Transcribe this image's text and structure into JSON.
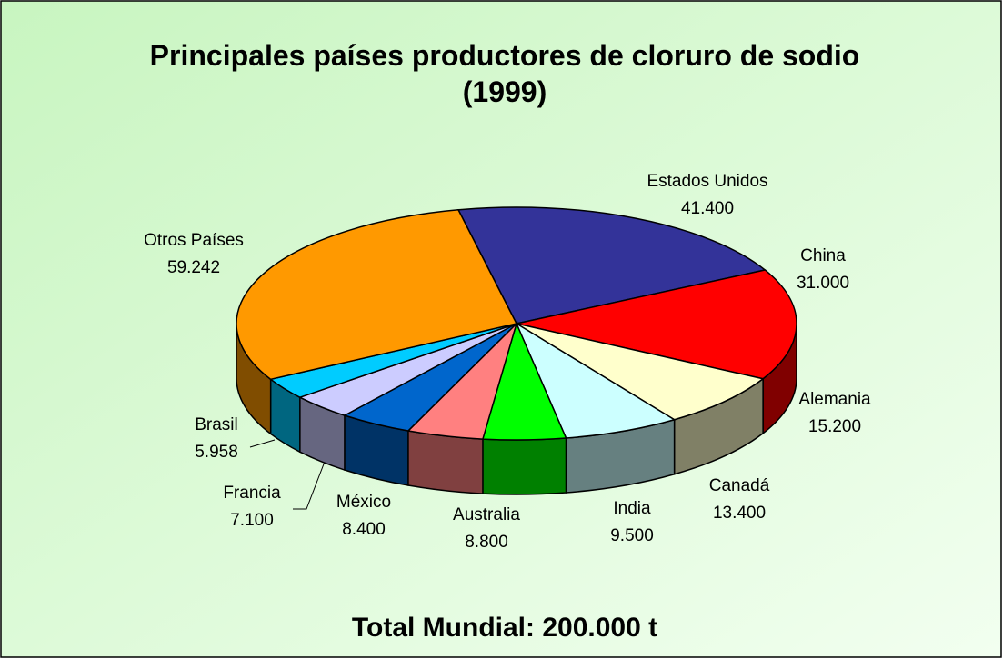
{
  "chart_data": {
    "type": "pie3d",
    "title": "Principales países productores de cloruro de sodio (1999)",
    "footer": "Total Mundial: 200.000 t",
    "categories": [
      "Estados Unidos",
      "China",
      "Alemania",
      "Canadá",
      "India",
      "Australia",
      "México",
      "Francia",
      "Brasil",
      "Otros Países"
    ],
    "values": [
      41400,
      31000,
      15200,
      13400,
      9500,
      8800,
      8400,
      7100,
      5958,
      59242
    ],
    "value_labels": [
      "41.400",
      "31.000",
      "15.200",
      "13.400",
      "9.500",
      "8.800",
      "8.400",
      "7.100",
      "5.958",
      "59.242"
    ],
    "colors": [
      "#333399",
      "#ff0000",
      "#ffffcc",
      "#ccffff",
      "#00ff00",
      "#ff8080",
      "#0066cc",
      "#ccccff",
      "#00ccff",
      "#ff9900"
    ]
  }
}
